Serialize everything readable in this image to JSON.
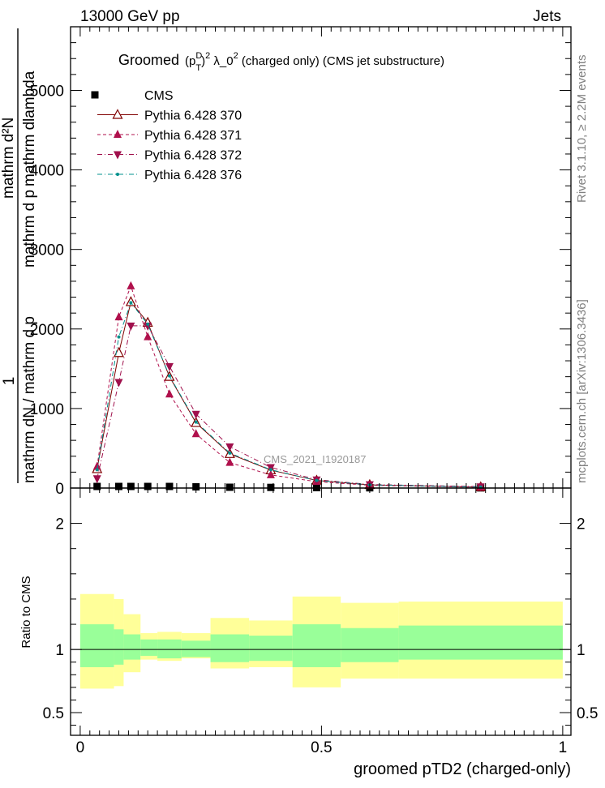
{
  "header": {
    "left": "13000 GeV pp",
    "right": "Jets"
  },
  "side": {
    "rivet": "Rivet 3.1.10, ≥ 2.2M events",
    "mcplots": "mcplots.cern.ch [arXiv:1306.3436]"
  },
  "chart_data": {
    "type": "scatter",
    "title": "Groomed (p_T^D)^2 λ_0^2 (charged only) (CMS jet substructure)",
    "title_parts": {
      "a": "Groomed ",
      "b": "(p",
      "sup1": "D",
      "sub1": "T",
      "c": ")",
      "sup2": "2",
      "d": " λ_0",
      "sup3": "2",
      "e": "  (charged only) (CMS jet substructure)"
    },
    "analysis": "CMS_2021_I1920187",
    "xlabel": "groomed pTD2 (charged-only)",
    "ylabel": "1 / mathrm d^2N / mathrm d p_T mathrm d lambda / mathrm d^2N / mathrm dN / mathrm d p_T",
    "ylabel_parts": {
      "one": "1",
      "top": "mathrm d²N",
      "den_top": "mathrm d p",
      "den_mid": "mathrm d",
      "den_end": "lambda",
      "bottom": "mathrm d²N / mathrm d p",
      "bottom2": "mathrm dN / mathrm d p",
      "sub": "T"
    },
    "xlim": [
      0,
      1
    ],
    "ylim": [
      0,
      5800
    ],
    "x_ticks": [
      0,
      0.5,
      1
    ],
    "x_tick_labels": [
      "0",
      "0.5",
      "1"
    ],
    "y_ticks": [
      0,
      1000,
      2000,
      3000,
      4000,
      5000
    ],
    "y_tick_labels": [
      "0",
      "1000",
      "2000",
      "3000",
      "4000",
      "5000"
    ],
    "ratio": {
      "ylabel": "Ratio to CMS",
      "ylim": [
        0.32,
        2.28
      ],
      "y_ticks": [
        0.5,
        1,
        2
      ],
      "y_tick_labels": [
        "0.5",
        "1",
        "2"
      ],
      "bins": [
        [
          0.0,
          0.07,
          0.86,
          1.2,
          0.69,
          1.44
        ],
        [
          0.07,
          0.09,
          0.88,
          1.16,
          0.71,
          1.4
        ],
        [
          0.09,
          0.125,
          0.92,
          1.12,
          0.82,
          1.28
        ],
        [
          0.125,
          0.16,
          0.95,
          1.08,
          0.92,
          1.13
        ],
        [
          0.16,
          0.21,
          0.93,
          1.08,
          0.91,
          1.14
        ],
        [
          0.21,
          0.27,
          0.94,
          1.07,
          0.93,
          1.13
        ],
        [
          0.27,
          0.35,
          0.9,
          1.12,
          0.85,
          1.25
        ],
        [
          0.35,
          0.44,
          0.91,
          1.11,
          0.86,
          1.23
        ],
        [
          0.44,
          0.54,
          0.86,
          1.2,
          0.7,
          1.42
        ],
        [
          0.54,
          0.66,
          0.9,
          1.17,
          0.77,
          1.37
        ],
        [
          0.66,
          1.0,
          0.92,
          1.19,
          0.77,
          1.38
        ]
      ]
    },
    "series": [
      {
        "name": "CMS",
        "color": "#000000",
        "marker": "square",
        "line": "none",
        "x": [
          0.035,
          0.08,
          0.105,
          0.14,
          0.185,
          0.24,
          0.31,
          0.395,
          0.49,
          0.6,
          0.83
        ],
        "y": [
          20,
          20,
          20,
          20,
          20,
          15,
          10,
          8,
          5,
          3,
          2
        ]
      },
      {
        "name": "Pythia 6.428 370",
        "color": "#800000",
        "marker": "open-triangle-up",
        "line": "solid",
        "x": [
          0.035,
          0.08,
          0.105,
          0.14,
          0.185,
          0.24,
          0.31,
          0.395,
          0.49,
          0.6,
          0.83
        ],
        "y": [
          240,
          1700,
          2340,
          2080,
          1400,
          820,
          430,
          225,
          95,
          40,
          12
        ]
      },
      {
        "name": "Pythia 6.428 371",
        "color": "#b0104c",
        "marker": "triangle-up",
        "line": "dashed",
        "x": [
          0.035,
          0.08,
          0.105,
          0.14,
          0.185,
          0.24,
          0.31,
          0.395,
          0.49,
          0.6,
          0.83
        ],
        "y": [
          270,
          2150,
          2540,
          1900,
          1180,
          680,
          320,
          165,
          80,
          35,
          10
        ]
      },
      {
        "name": "Pythia 6.428 372",
        "color": "#a0104c",
        "marker": "triangle-down",
        "line": "dashdot",
        "x": [
          0.035,
          0.08,
          0.105,
          0.14,
          0.185,
          0.24,
          0.31,
          0.395,
          0.49,
          0.6,
          0.83
        ],
        "y": [
          120,
          1330,
          2040,
          2040,
          1530,
          930,
          520,
          260,
          105,
          45,
          18
        ]
      },
      {
        "name": "Pythia 6.428 376",
        "color": "#00908c",
        "marker": "dot",
        "line": "dashdot",
        "x": [
          0.035,
          0.08,
          0.105,
          0.14,
          0.185,
          0.24,
          0.31,
          0.395,
          0.49,
          0.6,
          0.83
        ],
        "y": [
          230,
          1900,
          2330,
          2060,
          1410,
          830,
          440,
          230,
          95,
          40,
          12
        ]
      }
    ]
  }
}
